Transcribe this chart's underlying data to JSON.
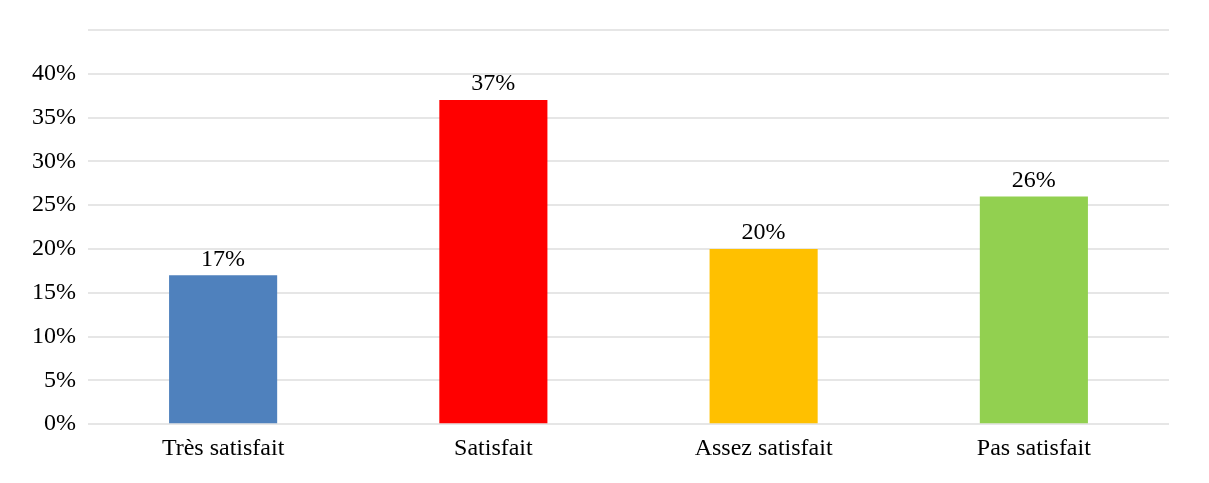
{
  "chart_data": {
    "type": "bar",
    "categories": [
      "Très satisfait",
      "Satisfait",
      "Assez satisfait",
      "Pas satisfait"
    ],
    "values": [
      17,
      37,
      20,
      26
    ],
    "colors": [
      "#4f81bd",
      "#ff0000",
      "#ffc000",
      "#92d050"
    ],
    "value_labels": [
      "17%",
      "37%",
      "20%",
      "26%"
    ],
    "ylim": [
      0,
      45
    ],
    "yticks": [
      {
        "value": 0,
        "label": "0%"
      },
      {
        "value": 5,
        "label": "5%"
      },
      {
        "value": 10,
        "label": "10%"
      },
      {
        "value": 15,
        "label": "15%"
      },
      {
        "value": 20,
        "label": "20%"
      },
      {
        "value": 25,
        "label": "25%"
      },
      {
        "value": 30,
        "label": "30%"
      },
      {
        "value": 35,
        "label": "35%"
      },
      {
        "value": 40,
        "label": "40%"
      },
      {
        "value": 45,
        "label": null
      }
    ],
    "grid": "y"
  }
}
